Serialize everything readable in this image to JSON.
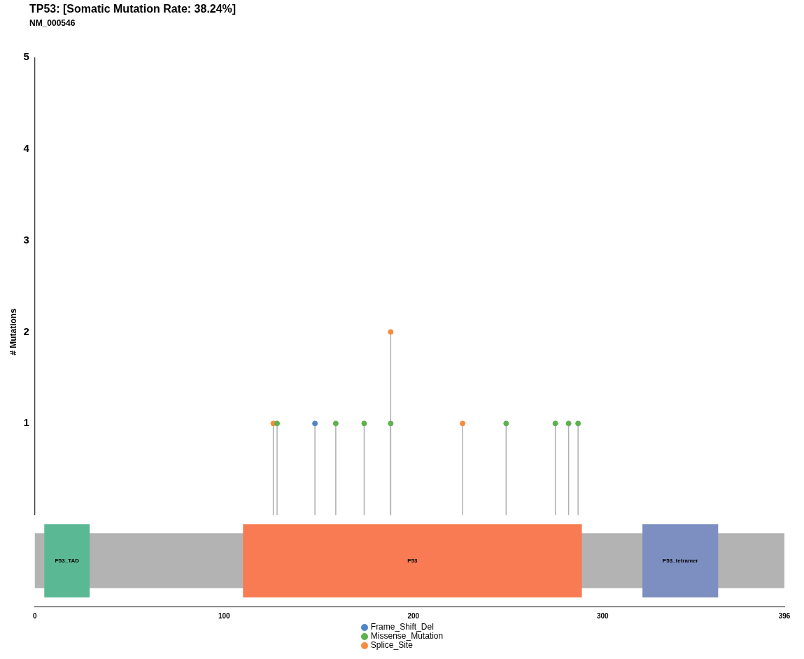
{
  "chart_data": {
    "type": "lollipop",
    "title": "TP53: [Somatic Mutation Rate: 38.24%]",
    "subtitle": "NM_000546",
    "ylabel": "# Mutations",
    "xlim": [
      0,
      396
    ],
    "xticks": [
      0,
      100,
      200,
      300,
      396
    ],
    "ylim": [
      -1,
      5
    ],
    "yticks": [
      1,
      2,
      3,
      4,
      5
    ],
    "grid": false,
    "legend": "bottom",
    "marker": "circle",
    "series": [
      {
        "name": "Frame_Shift_Del",
        "color": "#4f86c6",
        "x": [
          148
        ],
        "values": [
          1
        ]
      },
      {
        "name": "Missense_Mutation",
        "color": "#5fb14e",
        "x": [
          128,
          159,
          174,
          188,
          249,
          275,
          282,
          287
        ],
        "values": [
          1,
          1,
          1,
          1,
          1,
          1,
          1,
          1
        ]
      },
      {
        "name": "Splice_Site",
        "color": "#f88c3c",
        "x": [
          126,
          188,
          226
        ],
        "values": [
          1,
          2,
          1
        ]
      }
    ],
    "bands": [
      {
        "axis": "x",
        "from": 0,
        "to": 396,
        "color": "#b3b3b3"
      },
      {
        "axis": "x",
        "from": 5,
        "to": 29,
        "label": "P53_TAD",
        "color": "#5ab994"
      },
      {
        "axis": "x",
        "from": 110,
        "to": 289,
        "label": "P53",
        "color": "#f87b53"
      },
      {
        "axis": "x",
        "from": 321,
        "to": 361,
        "label": "P53_tetramer",
        "color": "#7d8fc0"
      }
    ]
  }
}
